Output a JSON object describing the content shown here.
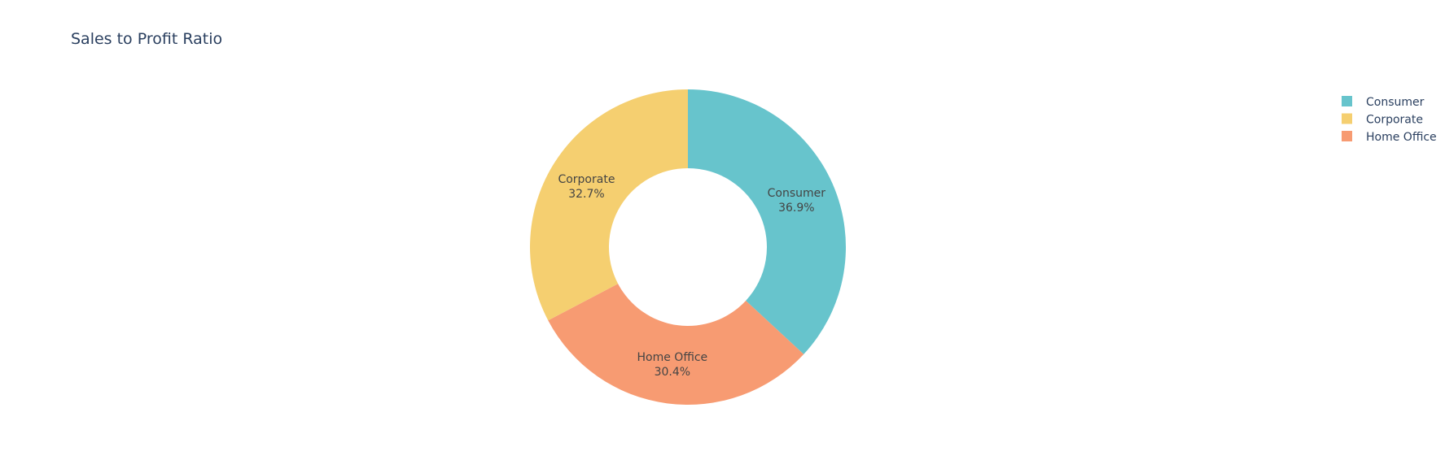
{
  "chart_data": {
    "type": "pie",
    "title": "Sales to Profit Ratio",
    "hole": 0.5,
    "direction": "clockwise",
    "rotation_deg": 0,
    "legend_placement": "top-right",
    "labels": [
      "Consumer",
      "Corporate",
      "Home Office"
    ],
    "values": [
      36.9,
      32.7,
      30.4
    ],
    "percent_labels": [
      "36.9%",
      "32.7%",
      "30.4%"
    ],
    "colors": [
      "#67c4cc",
      "#f5cf70",
      "#f79b72"
    ],
    "slice_order": [
      "Consumer",
      "Home Office",
      "Corporate"
    ]
  }
}
